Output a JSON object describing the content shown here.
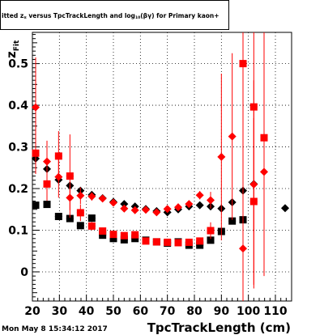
{
  "title": {
    "prefix": "itted",
    "z_sym": "z",
    "z_sub": "π",
    "middle": " versus TpcTrackLength and log",
    "log_sub": "10",
    "suffix": "(βγ) for Primary kaon+"
  },
  "date_stamp": "Mon May  8 15:34:12 2017",
  "colors": {
    "black_series": "#000000",
    "red_series": "#ff0000",
    "red_vlines": "#ff0000",
    "grid": "#000000",
    "background": "#ffffff"
  },
  "chart_data": {
    "type": "scatter",
    "xlabel": "TpcTrackLength (cm)",
    "ylabel": "z",
    "ylabel_sub": "Fit",
    "xlim": [
      20,
      116
    ],
    "ylim": [
      -0.07,
      0.575
    ],
    "x_ticks": [
      20,
      30,
      40,
      50,
      60,
      70,
      80,
      90,
      100,
      110
    ],
    "y_ticks": [
      0,
      0.1,
      0.2,
      0.3,
      0.4,
      0.5
    ],
    "y_tick_labels": [
      "0",
      "0.1",
      "0.2",
      "0.3",
      "0.4",
      "0.5"
    ],
    "grid": true,
    "series": [
      {
        "marker": "diamond",
        "color": "#000000",
        "points": [
          {
            "x": 21.2,
            "y": 0.272,
            "err": 0.005
          },
          {
            "x": 25.4,
            "y": 0.247,
            "err": 0.005
          },
          {
            "x": 29.7,
            "y": 0.221,
            "err": 0.006
          },
          {
            "x": 33.9,
            "y": 0.207,
            "err": 0.005
          },
          {
            "x": 37.8,
            "y": 0.195,
            "err": 0.004
          },
          {
            "x": 42.0,
            "y": 0.185,
            "err": 0.004
          },
          {
            "x": 46.0,
            "y": 0.177,
            "err": 0.004
          },
          {
            "x": 50.0,
            "y": 0.168,
            "err": 0.003
          },
          {
            "x": 54.0,
            "y": 0.163,
            "err": 0.003
          },
          {
            "x": 58.0,
            "y": 0.157,
            "err": 0.003
          },
          {
            "x": 62.0,
            "y": 0.151,
            "err": 0.003
          },
          {
            "x": 66.0,
            "y": 0.146,
            "err": 0.003
          },
          {
            "x": 70.0,
            "y": 0.143,
            "err": 0.003
          },
          {
            "x": 74.0,
            "y": 0.15,
            "err": 0.003
          },
          {
            "x": 78.0,
            "y": 0.157,
            "err": 0.003
          },
          {
            "x": 82.0,
            "y": 0.16,
            "err": 0.003
          },
          {
            "x": 86.0,
            "y": 0.157,
            "err": 0.004
          },
          {
            "x": 90.0,
            "y": 0.152,
            "err": 0.004
          },
          {
            "x": 94.0,
            "y": 0.167,
            "err": 0.004
          },
          {
            "x": 98.0,
            "y": 0.195,
            "err": 0.005
          },
          {
            "x": 102.0,
            "y": 0.211,
            "err": 0.006
          },
          {
            "x": 113.6,
            "y": 0.153,
            "err": 0.006
          }
        ]
      },
      {
        "marker": "square",
        "color": "#000000",
        "points": [
          {
            "x": 21.2,
            "y": 0.16,
            "err": 0.005
          },
          {
            "x": 25.4,
            "y": 0.162,
            "err": 0.005
          },
          {
            "x": 29.7,
            "y": 0.133,
            "err": 0.004
          },
          {
            "x": 33.9,
            "y": 0.128,
            "err": 0.004
          },
          {
            "x": 37.8,
            "y": 0.111,
            "err": 0.003
          },
          {
            "x": 42.0,
            "y": 0.129,
            "err": 0.003
          },
          {
            "x": 46.0,
            "y": 0.088,
            "err": 0.003
          },
          {
            "x": 50.0,
            "y": 0.08,
            "err": 0.003
          },
          {
            "x": 54.0,
            "y": 0.077,
            "err": 0.002
          },
          {
            "x": 58.0,
            "y": 0.08,
            "err": 0.002
          },
          {
            "x": 62.0,
            "y": 0.076,
            "err": 0.002
          },
          {
            "x": 66.0,
            "y": 0.072,
            "err": 0.002
          },
          {
            "x": 70.0,
            "y": 0.069,
            "err": 0.002
          },
          {
            "x": 74.0,
            "y": 0.072,
            "err": 0.002
          },
          {
            "x": 78.0,
            "y": 0.064,
            "err": 0.002
          },
          {
            "x": 82.0,
            "y": 0.064,
            "err": 0.003
          },
          {
            "x": 86.0,
            "y": 0.076,
            "err": 0.003
          },
          {
            "x": 90.0,
            "y": 0.097,
            "err": 0.004
          },
          {
            "x": 94.0,
            "y": 0.122,
            "err": 0.004
          },
          {
            "x": 98.0,
            "y": 0.125,
            "err": 0.005
          }
        ]
      },
      {
        "marker": "diamond",
        "color": "#ff0000",
        "points": [
          {
            "x": 21.2,
            "y": 0.395,
            "err": 0.12
          },
          {
            "x": 25.4,
            "y": 0.265,
            "err": 0.05
          },
          {
            "x": 29.7,
            "y": 0.228,
            "err": 0.05
          },
          {
            "x": 33.9,
            "y": 0.178,
            "err": 0.03
          },
          {
            "x": 37.8,
            "y": 0.183,
            "err": 0.02
          },
          {
            "x": 42.0,
            "y": 0.181,
            "err": 0.01
          },
          {
            "x": 46.0,
            "y": 0.176,
            "err": 0.008
          },
          {
            "x": 50.0,
            "y": 0.166,
            "err": 0.006
          },
          {
            "x": 54.0,
            "y": 0.152,
            "err": 0.005
          },
          {
            "x": 58.0,
            "y": 0.148,
            "err": 0.005
          },
          {
            "x": 62.0,
            "y": 0.149,
            "err": 0.005
          },
          {
            "x": 66.0,
            "y": 0.143,
            "err": 0.005
          },
          {
            "x": 70.0,
            "y": 0.151,
            "err": 0.006
          },
          {
            "x": 74.0,
            "y": 0.155,
            "err": 0.006
          },
          {
            "x": 78.0,
            "y": 0.163,
            "err": 0.008
          },
          {
            "x": 82.0,
            "y": 0.184,
            "err": 0.01
          },
          {
            "x": 86.0,
            "y": 0.172,
            "err": 0.02
          },
          {
            "x": 90.0,
            "y": 0.276,
            "err": 0.2
          },
          {
            "x": 94.0,
            "y": 0.325,
            "err": 0.2
          },
          {
            "x": 98.0,
            "y": 0.056,
            "err": 0.2
          },
          {
            "x": 102.0,
            "y": 0.21,
            "err": 0.25
          },
          {
            "x": 105.8,
            "y": 0.24,
            "err": 0.25
          }
        ]
      },
      {
        "marker": "square",
        "color": "#ff0000",
        "points": [
          {
            "x": 21.2,
            "y": 0.285,
            "err": 0.05
          },
          {
            "x": 25.4,
            "y": 0.211,
            "err": 0.04
          },
          {
            "x": 29.7,
            "y": 0.278,
            "err": 0.06
          },
          {
            "x": 33.9,
            "y": 0.23,
            "err": 0.1
          },
          {
            "x": 37.8,
            "y": 0.142,
            "err": 0.02
          },
          {
            "x": 42.0,
            "y": 0.11,
            "err": 0.01
          },
          {
            "x": 46.0,
            "y": 0.098,
            "err": 0.008
          },
          {
            "x": 50.0,
            "y": 0.09,
            "err": 0.006
          },
          {
            "x": 54.0,
            "y": 0.087,
            "err": 0.005
          },
          {
            "x": 58.0,
            "y": 0.089,
            "err": 0.005
          },
          {
            "x": 62.0,
            "y": 0.074,
            "err": 0.004
          },
          {
            "x": 66.0,
            "y": 0.072,
            "err": 0.004
          },
          {
            "x": 70.0,
            "y": 0.071,
            "err": 0.004
          },
          {
            "x": 74.0,
            "y": 0.07,
            "err": 0.005
          },
          {
            "x": 78.0,
            "y": 0.071,
            "err": 0.006
          },
          {
            "x": 82.0,
            "y": 0.074,
            "err": 0.008
          },
          {
            "x": 86.0,
            "y": 0.099,
            "err": 0.02
          },
          {
            "x": 98.0,
            "y": 0.5,
            "err": 0.3
          },
          {
            "x": 102.0,
            "y": 0.396,
            "err": 0.3
          },
          {
            "x": 105.8,
            "y": 0.322,
            "err": 0.3
          },
          {
            "x": 102.0,
            "y": 0.169,
            "err": 0.2
          }
        ]
      }
    ]
  }
}
